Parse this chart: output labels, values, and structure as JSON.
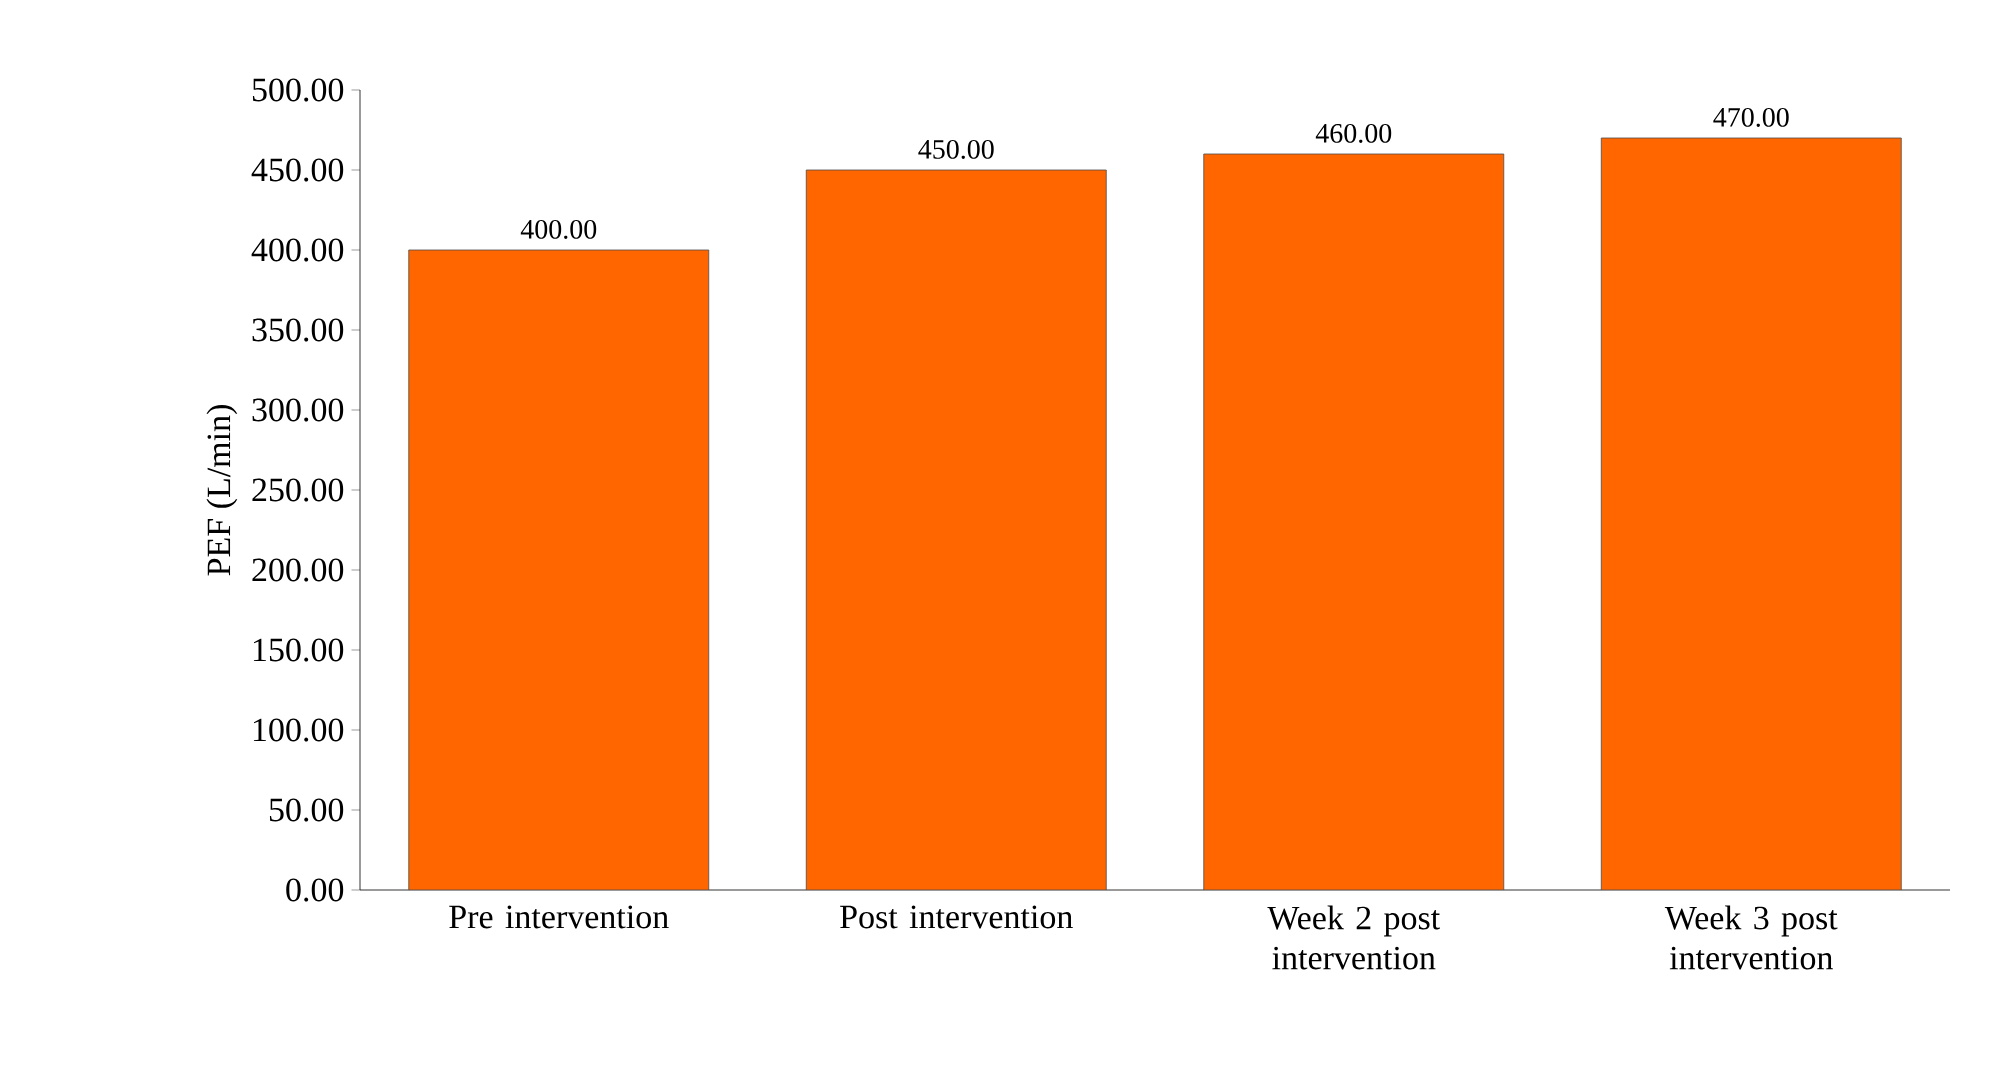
{
  "chart_data": {
    "type": "bar",
    "ylabel": "PEF (L/min)",
    "categories": [
      "Pre intervention",
      "Post intervention",
      "Week 2 post intervention",
      "Week 3 post intervention"
    ],
    "values": [
      400,
      450,
      460,
      470
    ],
    "value_labels": [
      "400.00",
      "450.00",
      "460.00",
      "470.00"
    ],
    "color": "#ff6600",
    "ylim": [
      0,
      500
    ],
    "yticks": [
      {
        "value": 0,
        "label": "0.00"
      },
      {
        "value": 50,
        "label": "50.00"
      },
      {
        "value": 100,
        "label": "100.00"
      },
      {
        "value": 150,
        "label": "150.00"
      },
      {
        "value": 200,
        "label": "200.00"
      },
      {
        "value": 250,
        "label": "250.00"
      },
      {
        "value": 300,
        "label": "300.00"
      },
      {
        "value": 350,
        "label": "350.00"
      },
      {
        "value": 400,
        "label": "400.00"
      },
      {
        "value": 450,
        "label": "450.00"
      },
      {
        "value": 500,
        "label": "500.00"
      }
    ],
    "grid": false
  }
}
